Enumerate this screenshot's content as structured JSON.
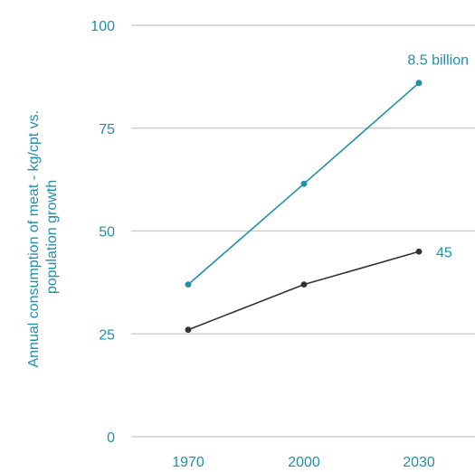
{
  "chart_data": {
    "type": "line",
    "title": "",
    "x": [
      "1970",
      "2000",
      "2030"
    ],
    "xlabel": "",
    "ylabel_lines": [
      "Annual consumption of meat - kg/cpt vs.",
      "population growth"
    ],
    "ylim": [
      0,
      100
    ],
    "yticks": [
      0,
      25,
      50,
      75,
      100
    ],
    "grid": true,
    "series": [
      {
        "values": [
          37,
          61.5,
          86
        ],
        "color": "#1f8fae",
        "end_label": "8.5 billion"
      },
      {
        "values": [
          26,
          37,
          45
        ],
        "color": "#333333",
        "end_label": "45"
      }
    ]
  }
}
